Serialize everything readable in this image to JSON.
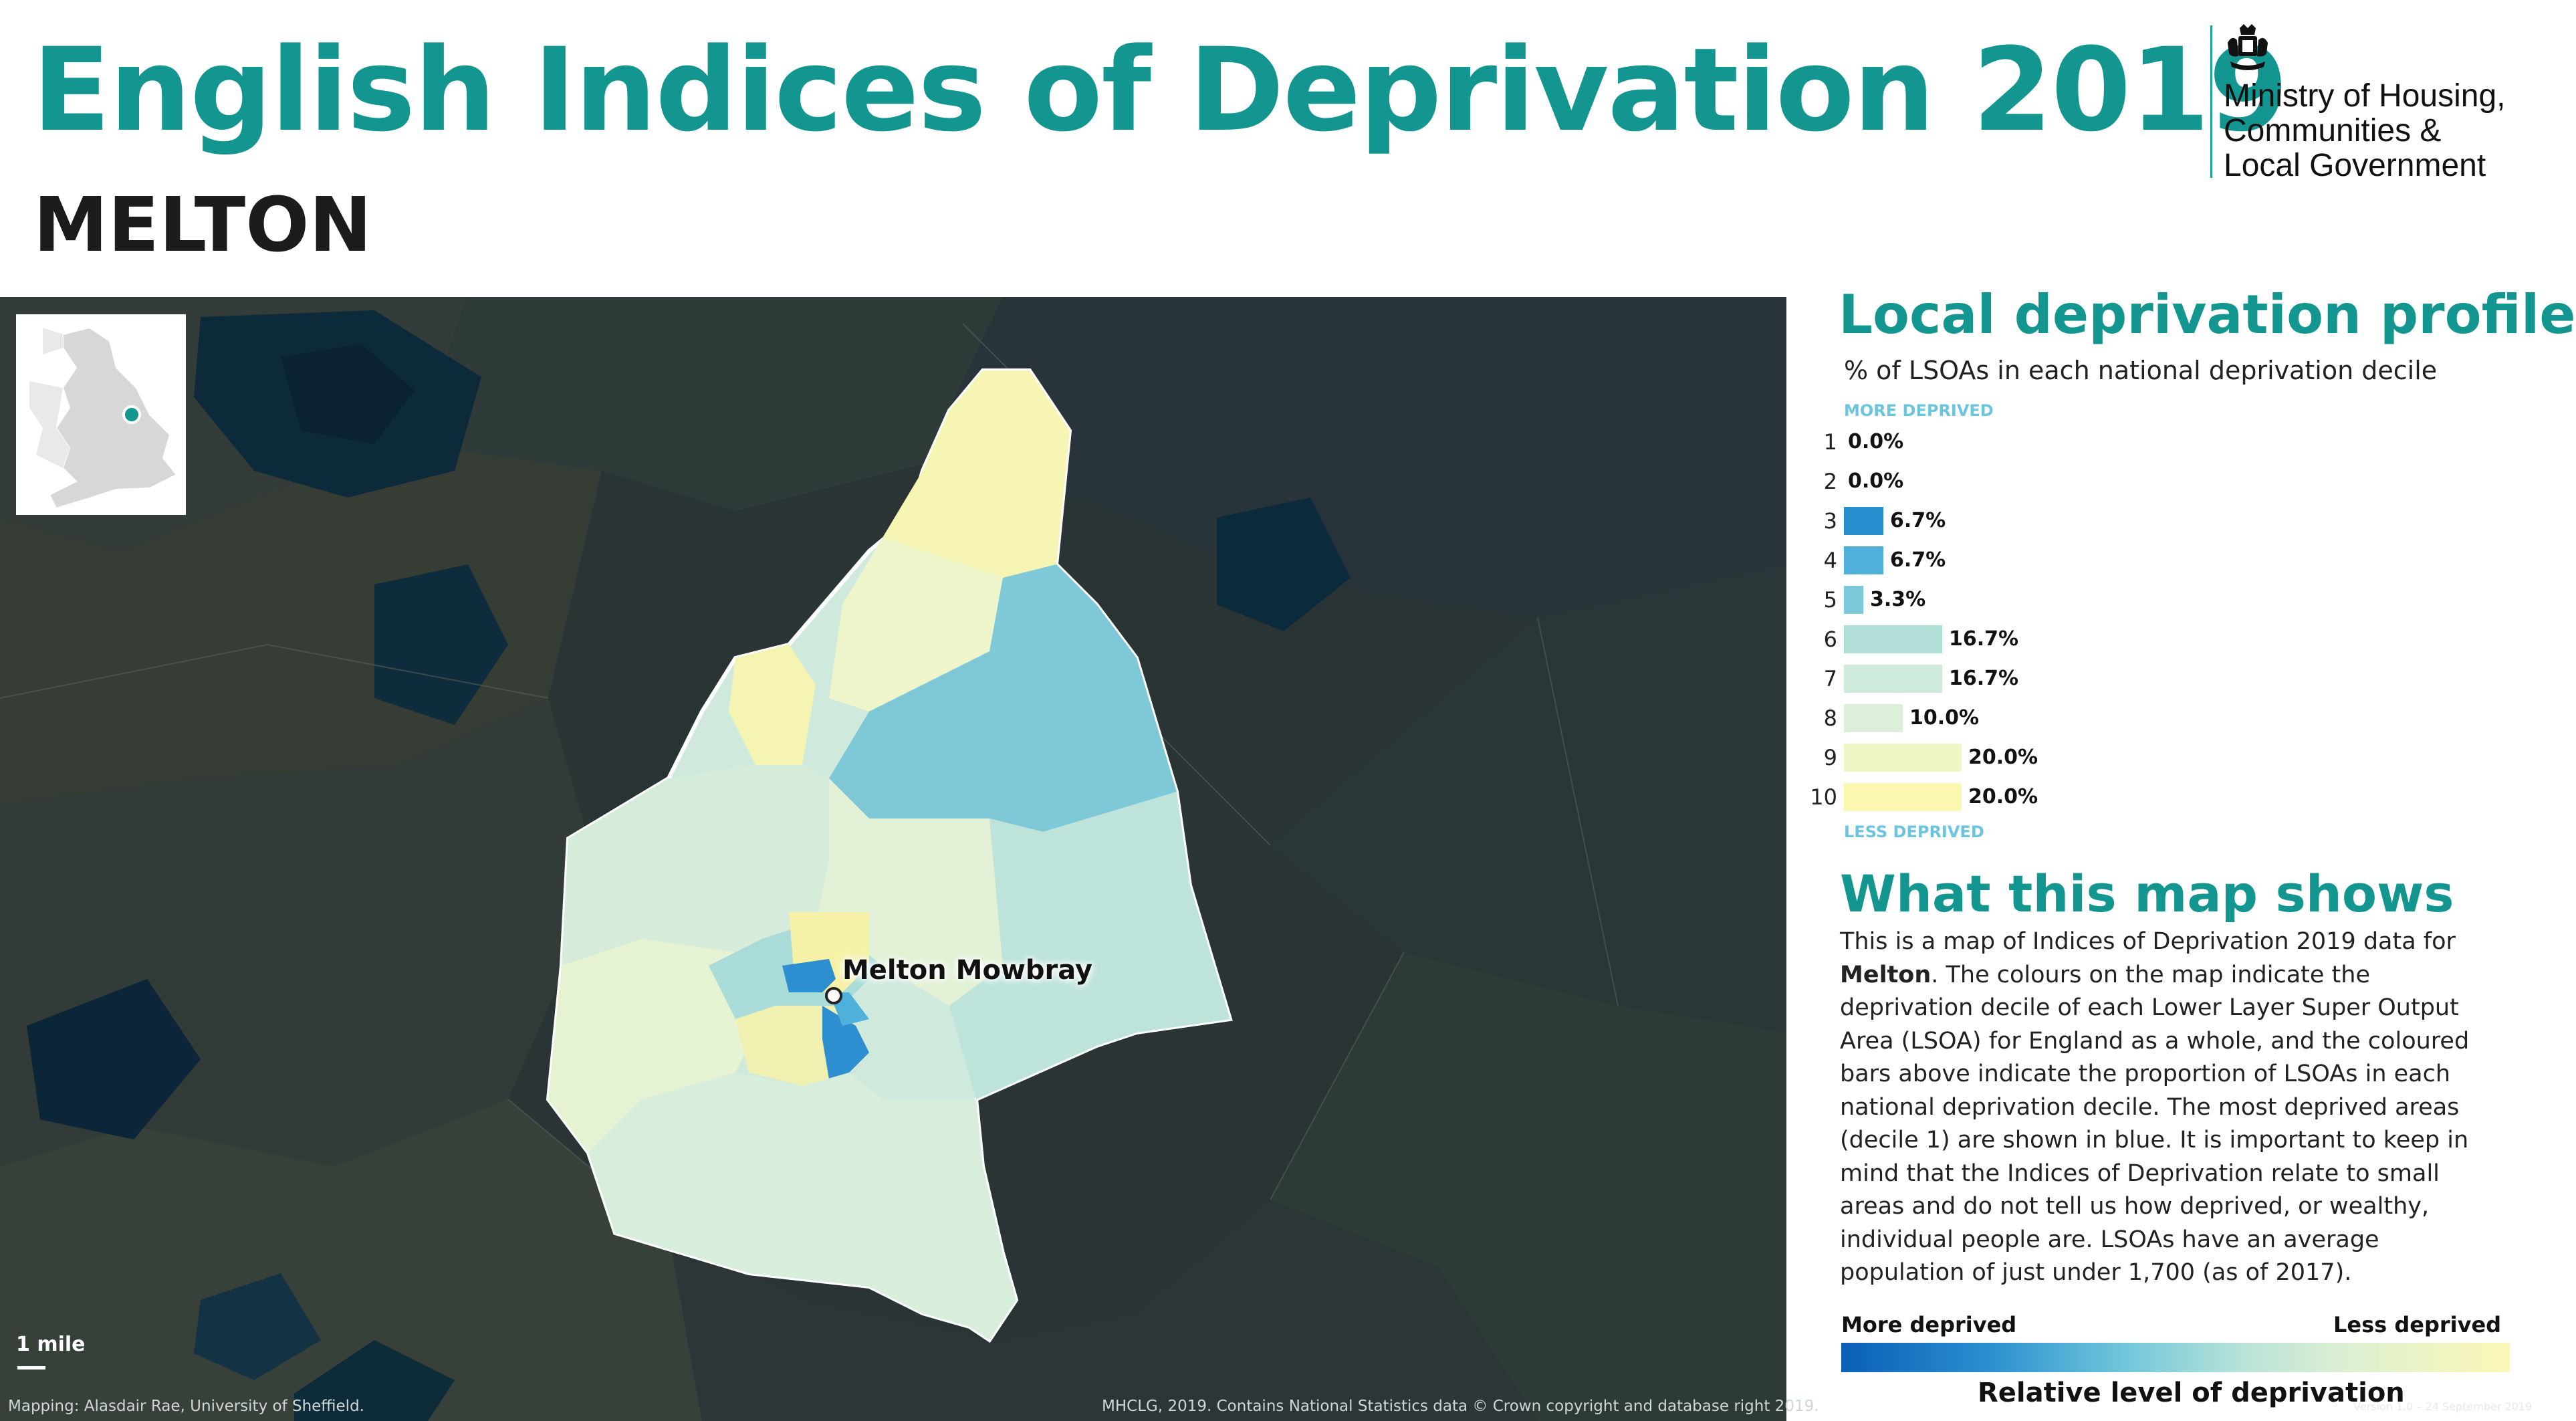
{
  "header": {
    "title": "English Indices of Deprivation 2019",
    "area_name": "MELTON"
  },
  "logo": {
    "name": "Ministry of Housing,\nCommunities &\nLocal Government",
    "icon": "royal-crest-icon",
    "rule_color": "#1aa39a"
  },
  "map": {
    "town_label": "Melton Mowbray",
    "scale_label": "1 mile",
    "credit_left": "Mapping: Alasdair Rae, University of Sheffield.",
    "credit_right": "MHCLG, 2019. Contains National Statistics data © Crown copyright and database right 2019.",
    "inset_marker_color": "#12968f"
  },
  "profile": {
    "title": "Local deprivation profile",
    "subtitle": "% of LSOAs in each national deprivation decile",
    "more_label": "MORE DEPRIVED",
    "less_label": "LESS DEPRIVED",
    "deciles": [
      {
        "decile": "1",
        "pct_label": "0.0%",
        "pct": 0.0,
        "color": "#0b5fb4"
      },
      {
        "decile": "2",
        "pct_label": "0.0%",
        "pct": 0.0,
        "color": "#1a78c2"
      },
      {
        "decile": "3",
        "pct_label": "6.7%",
        "pct": 6.7,
        "color": "#2a8fcf"
      },
      {
        "decile": "4",
        "pct_label": "6.7%",
        "pct": 6.7,
        "color": "#4fb1da"
      },
      {
        "decile": "5",
        "pct_label": "3.3%",
        "pct": 3.3,
        "color": "#7cc9dc"
      },
      {
        "decile": "6",
        "pct_label": "16.7%",
        "pct": 16.7,
        "color": "#b2e0d8"
      },
      {
        "decile": "7",
        "pct_label": "16.7%",
        "pct": 16.7,
        "color": "#cdeadb"
      },
      {
        "decile": "8",
        "pct_label": "10.0%",
        "pct": 10.0,
        "color": "#dcf0d9"
      },
      {
        "decile": "9",
        "pct_label": "20.0%",
        "pct": 20.0,
        "color": "#eef6c6"
      },
      {
        "decile": "10",
        "pct_label": "20.0%",
        "pct": 20.0,
        "color": "#fbf6b0"
      }
    ]
  },
  "shows": {
    "title": "What this map shows",
    "text_before": "This is a map of Indices of Deprivation 2019 data for ",
    "area_bold": "Melton",
    "text_after": ". The colours on the map indicate the deprivation decile of each Lower Layer Super Output Area (LSOA) for England as a whole, and the coloured bars above indicate the proportion of LSOAs in each national deprivation decile. The most deprived areas (decile 1) are shown in blue. It is important to keep in mind that the Indices of Deprivation relate to small areas and do not tell us how deprived, or wealthy, individual people are. LSOAs have an average population of just under 1,700 (as of 2017)."
  },
  "legend": {
    "more": "More deprived",
    "less": "Less deprived",
    "caption": "Relative level of deprivation"
  },
  "version": "Version 1.0 – 24 September 2019"
}
